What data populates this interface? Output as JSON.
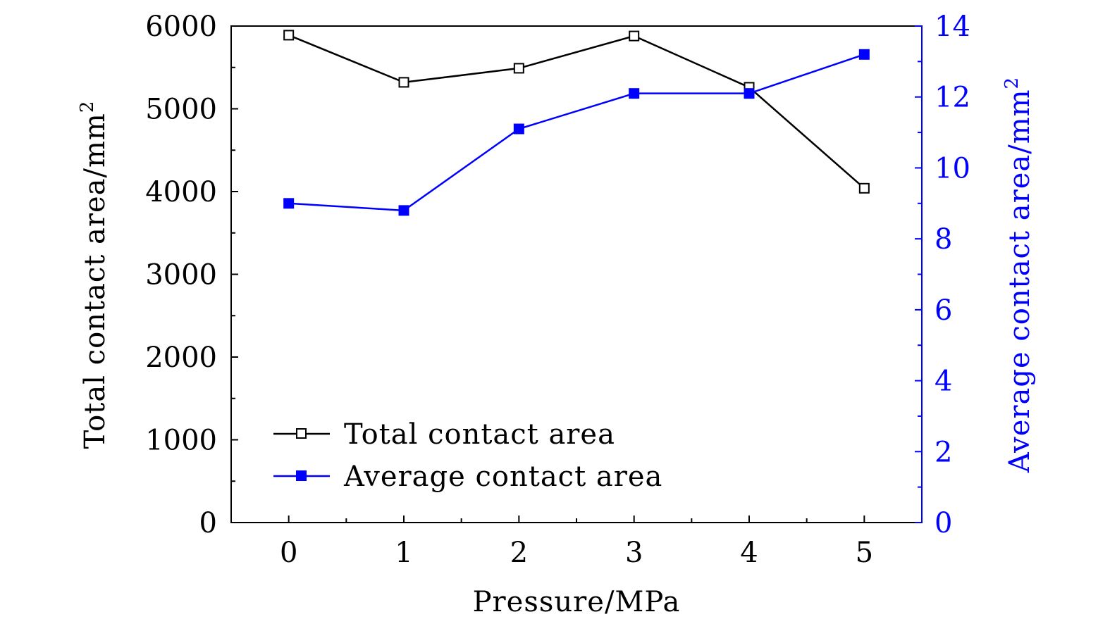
{
  "chart_data": {
    "type": "line",
    "x": [
      0,
      1,
      2,
      3,
      4,
      5
    ],
    "xlabel": "Pressure/MPa",
    "xlim": [
      -0.5,
      5.5
    ],
    "xticks": [
      "0",
      "1",
      "2",
      "3",
      "4",
      "5"
    ],
    "y_left": {
      "label_main": "Total contact area/mm",
      "label_sup": "2",
      "ylim": [
        0,
        6000
      ],
      "ticks": [
        "0",
        "1000",
        "2000",
        "3000",
        "4000",
        "5000",
        "6000"
      ],
      "color": "#000000"
    },
    "y_right": {
      "label_main": "Average contact area/mm",
      "label_sup": "2",
      "ylim": [
        0,
        14
      ],
      "ticks": [
        "0",
        "2",
        "4",
        "6",
        "8",
        "10",
        "12",
        "14"
      ],
      "color": "#0000ff"
    },
    "series": [
      {
        "name": "Total contact area",
        "axis": "left",
        "color": "#000000",
        "marker": "open-square",
        "values": [
          5890,
          5320,
          5490,
          5880,
          5260,
          4040
        ]
      },
      {
        "name": "Average contact area",
        "axis": "right",
        "color": "#0000ff",
        "marker": "filled-square",
        "values": [
          9.0,
          8.8,
          11.1,
          12.1,
          12.1,
          13.2
        ]
      }
    ],
    "legend_position": "bottom-left"
  }
}
